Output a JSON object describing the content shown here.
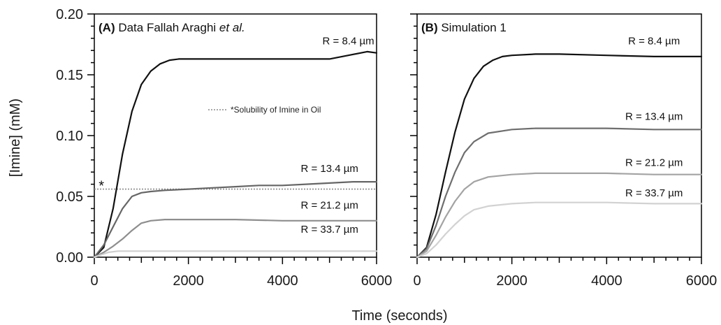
{
  "figure": {
    "y_axis_title": "[Imine] (mM)",
    "x_axis_title": "Time (seconds)"
  },
  "chart_data": [
    {
      "type": "line",
      "panel_letter": "(A)",
      "title_parts": [
        "Data Fallah Araghi ",
        "et al."
      ],
      "xlim": [
        0,
        6000
      ],
      "ylim": [
        0,
        0.2
      ],
      "xticks": [
        0,
        2000,
        4000,
        6000
      ],
      "yticks": [
        0.0,
        0.05,
        0.1,
        0.15,
        0.2
      ],
      "ytick_labels": [
        "0.00",
        "0.05",
        "0.10",
        "0.15",
        "0.20"
      ],
      "grid": false,
      "series": [
        {
          "name": "R = 8.4 µm",
          "color": "#111111",
          "x": [
            0,
            200,
            400,
            600,
            800,
            1000,
            1200,
            1400,
            1600,
            1800,
            2000,
            3000,
            4000,
            5000,
            5400,
            5800,
            6000
          ],
          "y": [
            0.0,
            0.008,
            0.04,
            0.085,
            0.12,
            0.142,
            0.153,
            0.159,
            0.162,
            0.163,
            0.163,
            0.163,
            0.163,
            0.163,
            0.166,
            0.169,
            0.168
          ]
        },
        {
          "name": "R = 13.4 µm",
          "color": "#666666",
          "x": [
            0,
            200,
            400,
            600,
            800,
            1000,
            1200,
            1500,
            2000,
            2500,
            3000,
            3500,
            4000,
            4500,
            5000,
            5500,
            6000
          ],
          "y": [
            0.0,
            0.01,
            0.025,
            0.04,
            0.05,
            0.053,
            0.054,
            0.055,
            0.056,
            0.057,
            0.058,
            0.059,
            0.059,
            0.06,
            0.061,
            0.062,
            0.062
          ]
        },
        {
          "name": "R = 21.2 µm",
          "color": "#8e8e8e",
          "x": [
            0,
            200,
            400,
            600,
            800,
            1000,
            1200,
            1500,
            2000,
            3000,
            4000,
            5000,
            6000
          ],
          "y": [
            0.0,
            0.004,
            0.009,
            0.015,
            0.022,
            0.028,
            0.03,
            0.031,
            0.031,
            0.031,
            0.03,
            0.03,
            0.03
          ]
        },
        {
          "name": "R = 33.7 µm",
          "color": "#cfcfcf",
          "x": [
            0,
            150,
            300,
            500,
            800,
            1500,
            3000,
            4500,
            6000
          ],
          "y": [
            0.0,
            0.002,
            0.004,
            0.005,
            0.005,
            0.005,
            0.005,
            0.005,
            0.005
          ]
        }
      ],
      "label_anchor_x": [
        5400,
        5000,
        5000,
        5000
      ],
      "label_anchor_y": [
        0.175,
        0.07,
        0.04,
        0.02
      ],
      "reference_line": {
        "y": 0.056,
        "label": "*Solubility of Imine in Oil",
        "color": "#8a8a8a",
        "marker": "*",
        "marker_x": 150,
        "marker_y": 0.063
      },
      "legend": "top-right"
    },
    {
      "type": "line",
      "panel_letter": "(B)",
      "title_parts": [
        "Simulation 1"
      ],
      "xlim": [
        0,
        6000
      ],
      "ylim": [
        0,
        0.2
      ],
      "xticks": [
        0,
        2000,
        4000,
        6000
      ],
      "grid": false,
      "series": [
        {
          "name": "R = 8.4 µm",
          "color": "#111111",
          "x": [
            0,
            200,
            400,
            600,
            800,
            1000,
            1200,
            1400,
            1600,
            1800,
            2000,
            2500,
            3000,
            4000,
            5000,
            6000
          ],
          "y": [
            0.0,
            0.008,
            0.035,
            0.07,
            0.103,
            0.13,
            0.147,
            0.157,
            0.162,
            0.165,
            0.166,
            0.167,
            0.167,
            0.166,
            0.165,
            0.165
          ]
        },
        {
          "name": "R = 13.4 µm",
          "color": "#6e6e6e",
          "x": [
            0,
            200,
            400,
            600,
            800,
            1000,
            1200,
            1500,
            2000,
            2500,
            3000,
            4000,
            5000,
            6000
          ],
          "y": [
            0.0,
            0.007,
            0.026,
            0.05,
            0.07,
            0.086,
            0.095,
            0.102,
            0.105,
            0.106,
            0.106,
            0.106,
            0.105,
            0.105
          ]
        },
        {
          "name": "R = 21.2 µm",
          "color": "#a3a3a3",
          "x": [
            0,
            200,
            400,
            600,
            800,
            1000,
            1200,
            1500,
            2000,
            2500,
            3000,
            4000,
            5000,
            6000
          ],
          "y": [
            0.0,
            0.005,
            0.018,
            0.033,
            0.046,
            0.056,
            0.062,
            0.066,
            0.068,
            0.069,
            0.069,
            0.069,
            0.068,
            0.068
          ]
        },
        {
          "name": "R = 33.7 µm",
          "color": "#d2d2d2",
          "x": [
            0,
            200,
            400,
            600,
            800,
            1000,
            1200,
            1500,
            2000,
            2500,
            3000,
            4000,
            5000,
            6000
          ],
          "y": [
            0.0,
            0.003,
            0.01,
            0.019,
            0.027,
            0.034,
            0.039,
            0.042,
            0.044,
            0.045,
            0.045,
            0.045,
            0.044,
            0.044
          ]
        }
      ],
      "label_anchor_x": [
        5000,
        5000,
        5000,
        5000
      ],
      "label_anchor_y": [
        0.175,
        0.113,
        0.075,
        0.05
      ]
    }
  ]
}
